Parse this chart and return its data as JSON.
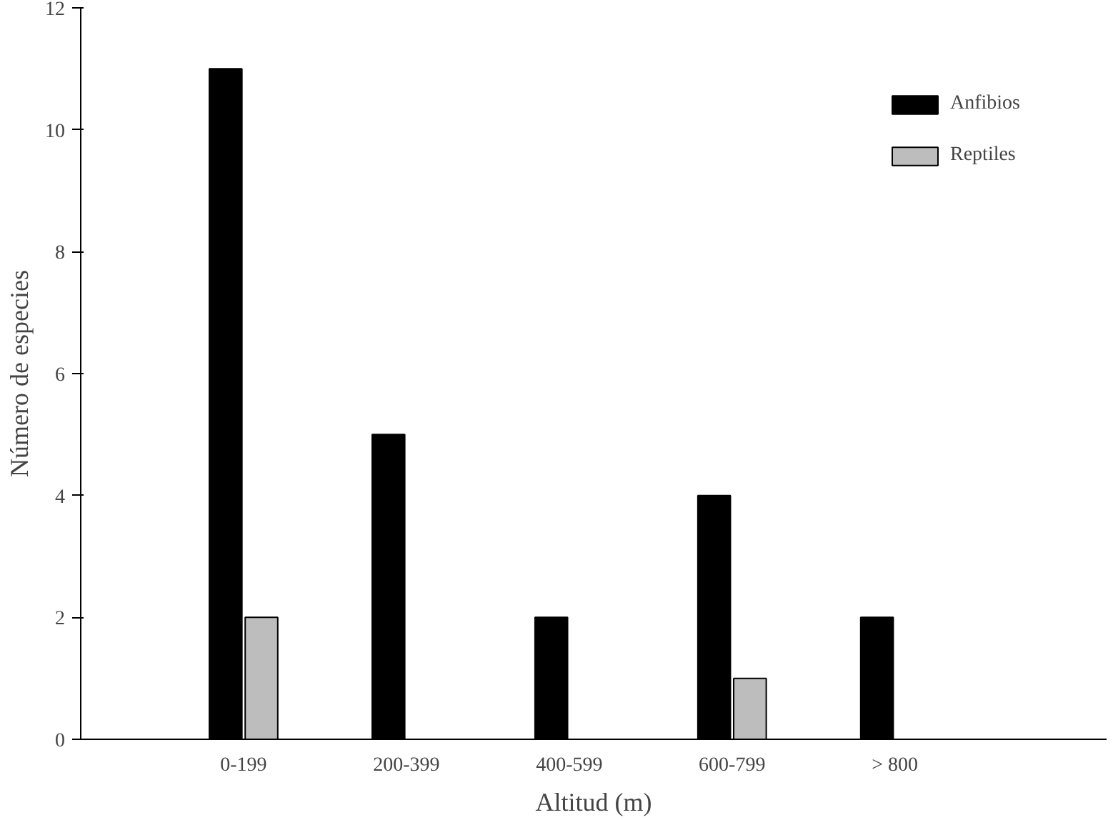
{
  "chart_data": {
    "type": "bar",
    "xlabel": "Altitud (m)",
    "ylabel": "Número de especies",
    "categories": [
      "0-199",
      "200-399",
      "400-599",
      "600-799",
      "> 800"
    ],
    "series": [
      {
        "name": "Anfibios",
        "color": "#000000",
        "values": [
          11,
          5,
          2,
          4,
          2
        ]
      },
      {
        "name": "Reptiles",
        "color": "#bdbdbd",
        "values": [
          2,
          0,
          0,
          1,
          0
        ]
      }
    ],
    "ylim": [
      0,
      12
    ],
    "yticks": [
      0,
      2,
      4,
      6,
      8,
      10,
      12
    ],
    "grid": false,
    "legend": "top right"
  }
}
